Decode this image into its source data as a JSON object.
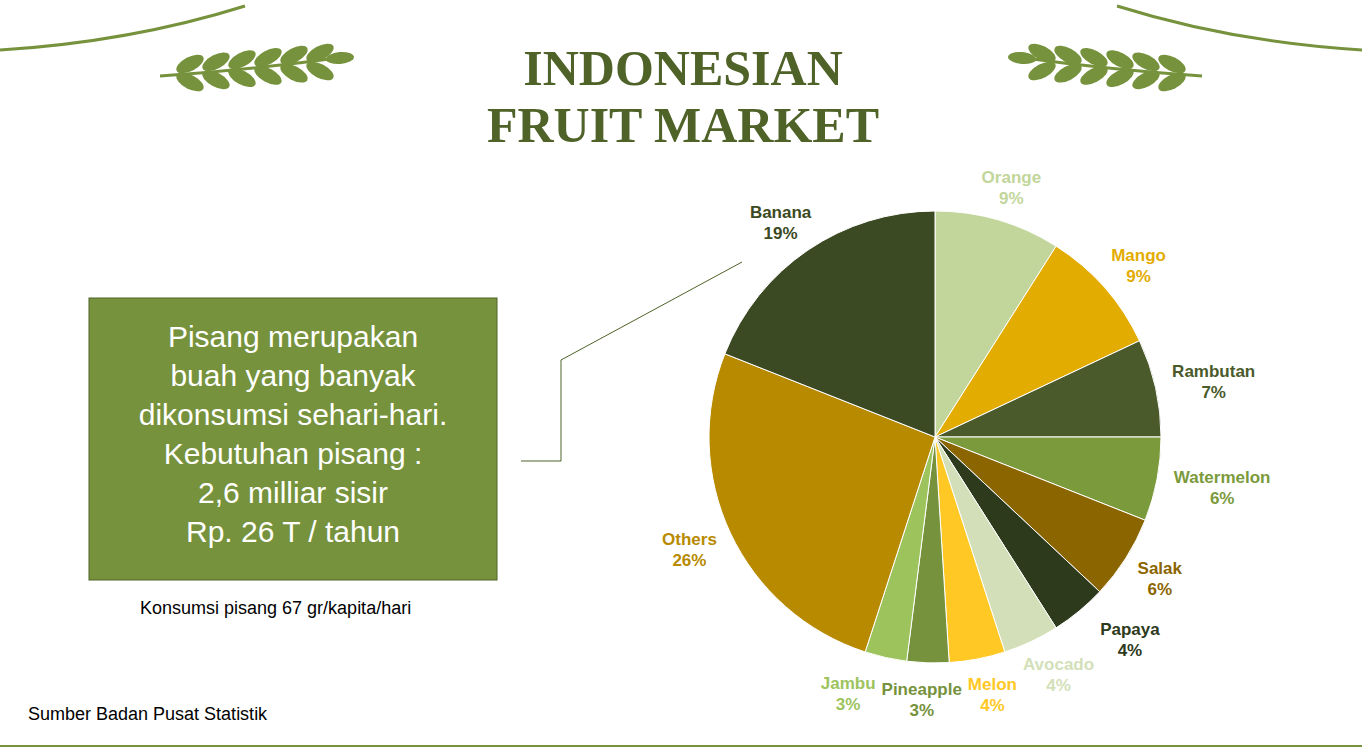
{
  "chart_data": {
    "type": "pie",
    "title": "INDONESIAN FRUIT MARKET",
    "categories": [
      "Orange",
      "Mango",
      "Rambutan",
      "Watermelon",
      "Salak",
      "Papaya",
      "Avocado",
      "Melon",
      "Pineapple",
      "Jambu",
      "Others",
      "Banana"
    ],
    "values": [
      9,
      9,
      7,
      6,
      6,
      4,
      4,
      4,
      3,
      3,
      26,
      19
    ],
    "value_labels": [
      "9%",
      "9%",
      "7%",
      "6%",
      "6%",
      "4%",
      "4%",
      "4%",
      "3%",
      "3%",
      "26%",
      "19%"
    ],
    "colors": [
      "#c2d69b",
      "#e3ac00",
      "#4a5a2b",
      "#7b9a3c",
      "#8b6600",
      "#2d3a1b",
      "#d3dfb8",
      "#ffc824",
      "#76923c",
      "#9dc35d",
      "#b88a00",
      "#3b4a22"
    ],
    "data_labels": true,
    "annotations": [
      {
        "lines": [
          "Pisang merupakan",
          "buah yang banyak",
          "dikonsumsi sehari-hari.",
          "Kebutuhan pisang :",
          "2,6 milliar sisir",
          "Rp. 26 T / tahun"
        ]
      },
      {
        "text": "Konsumsi pisang 67 gr/kapita/hari"
      }
    ],
    "source": "Sumber Badan Pusat Statistik"
  }
}
